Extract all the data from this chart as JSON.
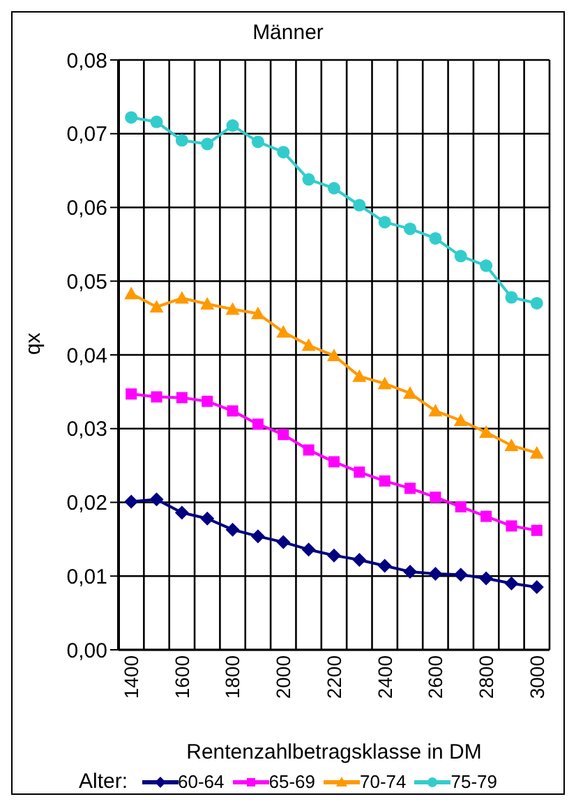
{
  "chart_data": {
    "type": "line",
    "title": "Männer",
    "xlabel": "Rentenzahlbetragsklasse in DM",
    "ylabel": "qx",
    "legend_title": "Alter:",
    "categories": [
      "1400",
      null,
      "1600",
      null,
      "1800",
      null,
      "2000",
      null,
      "2200",
      null,
      "2400",
      null,
      "2600",
      null,
      "2800",
      null,
      "3000"
    ],
    "ylim": [
      0,
      0.08
    ],
    "yticks": [
      {
        "value": 0,
        "label": "0,00"
      },
      {
        "value": 0.01,
        "label": "0,01"
      },
      {
        "value": 0.02,
        "label": "0,02"
      },
      {
        "value": 0.03,
        "label": "0,03"
      },
      {
        "value": 0.04,
        "label": "0,04"
      },
      {
        "value": 0.05,
        "label": "0,05"
      },
      {
        "value": 0.06,
        "label": "0,06"
      },
      {
        "value": 0.07,
        "label": "0,07"
      },
      {
        "value": 0.08,
        "label": "0,08"
      }
    ],
    "grid": true,
    "legend": "bottom",
    "line_style": "solid",
    "series": [
      {
        "name": "60-64",
        "color": "#000080",
        "marker": "diamond",
        "values": [
          0.0201,
          0.0204,
          0.0186,
          0.0178,
          0.0163,
          0.0154,
          0.0146,
          0.0136,
          0.0128,
          0.0122,
          0.0114,
          0.0106,
          0.0103,
          0.0102,
          0.0097,
          0.009,
          0.0085
        ]
      },
      {
        "name": "65-69",
        "color": "#ff00ff",
        "marker": "square",
        "values": [
          0.0347,
          0.0343,
          0.0342,
          0.0337,
          0.0324,
          0.0306,
          0.0292,
          0.0271,
          0.0255,
          0.0241,
          0.0229,
          0.0219,
          0.0207,
          0.0194,
          0.0181,
          0.0168,
          0.0162
        ]
      },
      {
        "name": "70-74",
        "color": "#ff9900",
        "marker": "triangle",
        "values": [
          0.0483,
          0.0465,
          0.0477,
          0.0469,
          0.0462,
          0.0456,
          0.0431,
          0.0413,
          0.0399,
          0.0371,
          0.0361,
          0.0348,
          0.0324,
          0.0311,
          0.0295,
          0.0277,
          0.0267
        ]
      },
      {
        "name": "75-79",
        "color": "#33cccc",
        "marker": "circle",
        "values": [
          0.0722,
          0.0716,
          0.0691,
          0.0686,
          0.0711,
          0.0689,
          0.0675,
          0.0638,
          0.0626,
          0.0603,
          0.058,
          0.0571,
          0.0558,
          0.0534,
          0.0521,
          0.0478,
          0.047
        ]
      }
    ]
  }
}
